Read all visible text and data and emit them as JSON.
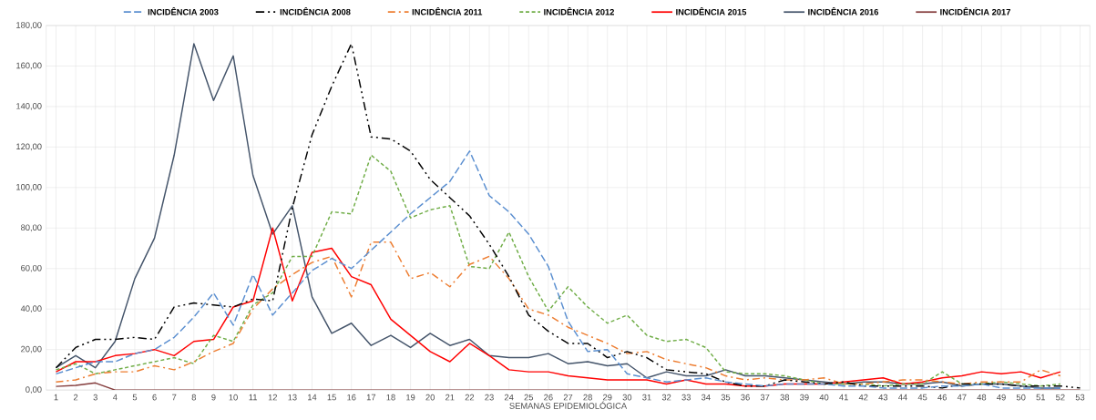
{
  "chart_data": {
    "type": "line",
    "xlabel": "SEMANAS EPIDEMIOLÓGICA",
    "categories": [
      "1",
      "2",
      "3",
      "4",
      "5",
      "6",
      "7",
      "8",
      "9",
      "10",
      "11",
      "12",
      "13",
      "14",
      "15",
      "16",
      "17",
      "18",
      "19",
      "20",
      "21",
      "22",
      "23",
      "24",
      "25",
      "26",
      "27",
      "28",
      "29",
      "30",
      "31",
      "32",
      "33",
      "34",
      "35",
      "36",
      "37",
      "38",
      "39",
      "40",
      "41",
      "42",
      "43",
      "44",
      "45",
      "46",
      "47",
      "48",
      "49",
      "50",
      "51",
      "52",
      "53"
    ],
    "series": [
      {
        "name": "INCIDÊNCIA 2003",
        "color": "#5b8fd0",
        "line_style": "dashed",
        "values": [
          8,
          11,
          14,
          14,
          18,
          20,
          26,
          36,
          48,
          32,
          57,
          37,
          48,
          59,
          65,
          60,
          69,
          78,
          87,
          95,
          103,
          118,
          96,
          88,
          77,
          61,
          34,
          19,
          20,
          8,
          6,
          4,
          5,
          6,
          4,
          3,
          2,
          3,
          3,
          3,
          2,
          2,
          1,
          1,
          1,
          2,
          2,
          3,
          1,
          1,
          1,
          1,
          null
        ]
      },
      {
        "name": "INCIDÊNCIA 2008",
        "color": "#000000",
        "line_style": "dashdotdot",
        "values": [
          11,
          21,
          25,
          25,
          26,
          25,
          41,
          43,
          42,
          41,
          45,
          44,
          90,
          126,
          150,
          171,
          125,
          124,
          118,
          104,
          95,
          86,
          72,
          56,
          37,
          29,
          23,
          23,
          16,
          19,
          16,
          10,
          9,
          8,
          4,
          2,
          2,
          5,
          4,
          3,
          4,
          2,
          2,
          2,
          2,
          1,
          3,
          3,
          3,
          2,
          2,
          2,
          1
        ]
      },
      {
        "name": "INCIDÊNCIA 2011",
        "color": "#ed7d31",
        "line_style": "dashdot",
        "values": [
          4,
          5,
          8,
          9,
          9,
          12,
          10,
          14,
          19,
          23,
          40,
          50,
          57,
          63,
          66,
          46,
          73,
          73,
          55,
          58,
          51,
          62,
          66,
          55,
          40,
          37,
          31,
          27,
          23,
          18,
          19,
          15,
          13,
          11,
          7,
          5,
          6,
          5,
          5,
          6,
          3,
          3,
          4,
          5,
          5,
          4,
          3,
          4,
          4,
          4,
          10,
          7,
          null
        ]
      },
      {
        "name": "INCIDÊNCIA 2012",
        "color": "#70ad47",
        "line_style": "densely dashed",
        "values": [
          10,
          13,
          8,
          10,
          12,
          14,
          16,
          13,
          27,
          24,
          42,
          48,
          66,
          66,
          88,
          87,
          116,
          108,
          85,
          89,
          91,
          61,
          60,
          78,
          56,
          39,
          51,
          41,
          33,
          37,
          27,
          24,
          25,
          21,
          9,
          8,
          8,
          7,
          5,
          3,
          3,
          3,
          2,
          3,
          3,
          9,
          3,
          3,
          4,
          3,
          2,
          3,
          null
        ]
      },
      {
        "name": "INCIDÊNCIA 2015",
        "color": "#ff0000",
        "line_style": "solid",
        "values": [
          9,
          14,
          14,
          17,
          18,
          20,
          17,
          24,
          25,
          41,
          44,
          80,
          44,
          68,
          70,
          56,
          52,
          35,
          27,
          19,
          14,
          23,
          17,
          10,
          9,
          9,
          7,
          6,
          5,
          5,
          5,
          3,
          5,
          3,
          3,
          2,
          2,
          3,
          3,
          3,
          4,
          5,
          6,
          3,
          4,
          6,
          7,
          9,
          8,
          9,
          6,
          9,
          null
        ]
      },
      {
        "name": "INCIDÊNCIA 2016",
        "color": "#44546a",
        "line_style": "solid",
        "values": [
          11,
          17,
          11,
          24,
          55,
          75,
          116,
          171,
          143,
          165,
          106,
          77,
          91,
          46,
          28,
          33,
          22,
          27,
          21,
          28,
          22,
          25,
          17,
          16,
          16,
          18,
          13,
          14,
          12,
          13,
          6,
          9,
          7,
          7,
          10,
          7,
          7,
          6,
          5,
          4,
          3,
          4,
          4,
          3,
          3,
          4,
          2,
          3,
          3,
          2,
          1,
          1,
          null
        ]
      },
      {
        "name": "INCIDÊNCIA 2017",
        "color": "#843c3c",
        "line_style": "solid",
        "values": [
          1.8,
          2.3,
          3.5,
          0,
          0,
          0,
          0,
          0,
          0,
          0,
          0,
          0,
          0,
          0,
          0,
          0,
          0,
          0,
          0,
          0,
          0,
          0,
          0,
          0,
          0,
          0,
          0,
          0,
          0,
          0,
          0,
          0,
          0,
          0,
          0,
          0,
          0,
          0,
          0,
          0,
          0,
          0,
          0,
          0,
          0,
          0,
          0,
          0,
          0,
          0,
          0,
          0,
          0
        ]
      }
    ],
    "ylim": [
      0,
      180
    ],
    "yticks": [
      {
        "value": 0,
        "label": "0,00"
      },
      {
        "value": 20,
        "label": "20,00"
      },
      {
        "value": 40,
        "label": "40,00"
      },
      {
        "value": 60,
        "label": "60,00"
      },
      {
        "value": 80,
        "label": "80,00"
      },
      {
        "value": 100,
        "label": "100,00"
      },
      {
        "value": 120,
        "label": "120,00"
      },
      {
        "value": 140,
        "label": "140,00"
      },
      {
        "value": 160,
        "label": "160,00"
      },
      {
        "value": 180,
        "label": "180,00"
      }
    ],
    "grid": true,
    "legend": "top",
    "marker": "none"
  }
}
